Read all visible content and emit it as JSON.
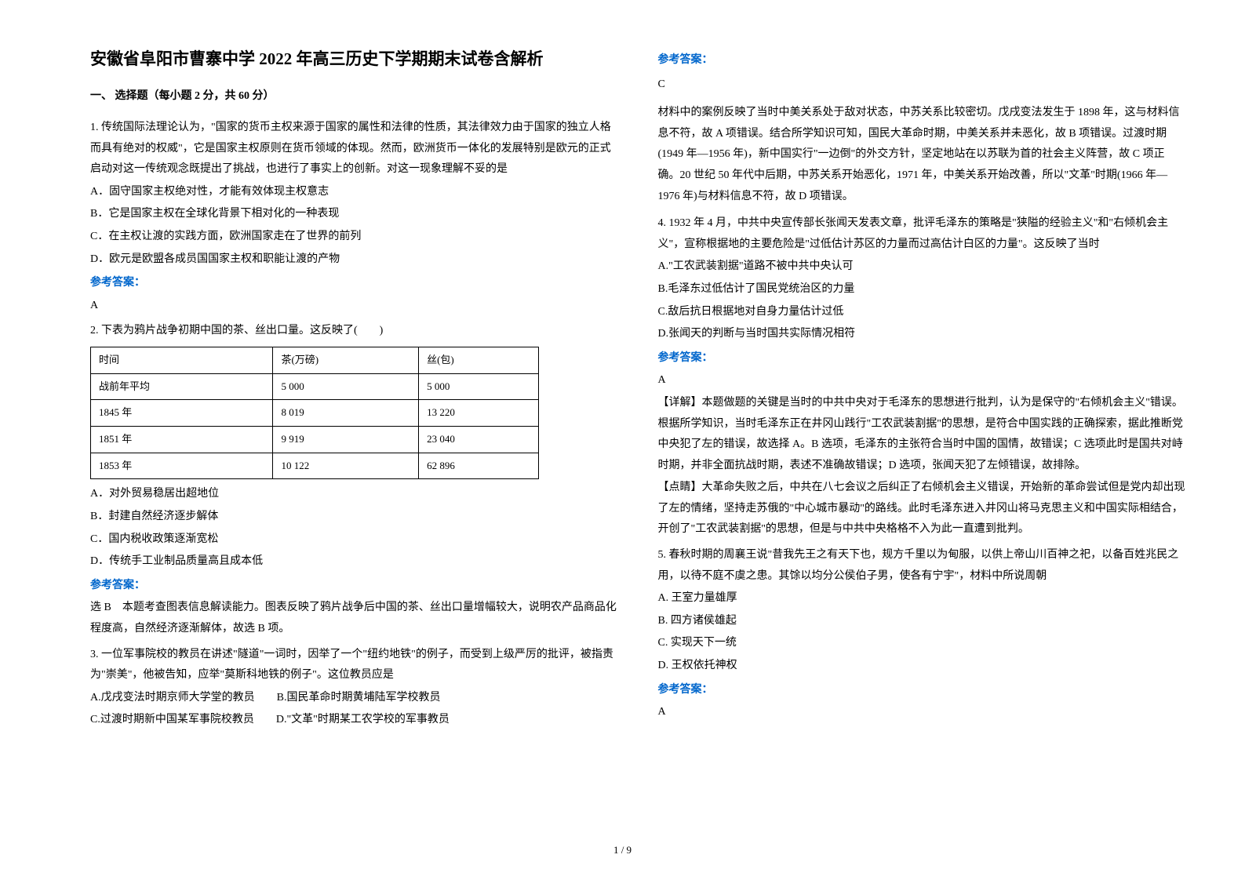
{
  "title": "安徽省阜阳市曹寨中学 2022 年高三历史下学期期末试卷含解析",
  "section_header": "一、 选择题（每小题 2 分，共 60 分）",
  "left": {
    "q1": {
      "stem": "1. 传统国际法理论认为，\"国家的货币主权来源于国家的属性和法律的性质，其法律效力由于国家的独立人格而具有绝对的权威\"，它是国家主权原则在货币领域的体现。然而，欧洲货币一体化的发展特别是欧元的正式启动对这一传统观念既提出了挑战，也进行了事实上的创新。对这一现象理解不妥的是",
      "opts": [
        "A．固守国家主权绝对性，才能有效体现主权意志",
        "B．它是国家主权在全球化背景下相对化的一种表现",
        "C．在主权让渡的实践方面，欧洲国家走在了世界的前列",
        "D．欧元是欧盟各成员国国家主权和职能让渡的产物"
      ],
      "answer": "A"
    },
    "q2": {
      "stem": "2. 下表为鸦片战争初期中国的茶、丝出口量。这反映了(　　)",
      "table": {
        "header": [
          "时间",
          "茶(万磅)",
          "丝(包)"
        ],
        "rows": [
          [
            "战前年平均",
            "5 000",
            "5 000"
          ],
          [
            "1845 年",
            "8 019",
            "13 220"
          ],
          [
            "1851 年",
            "9 919",
            "23 040"
          ],
          [
            "1853 年",
            "10 122",
            "62 896"
          ]
        ]
      },
      "opts": [
        "A．对外贸易稳居出超地位",
        "B．封建自然经济逐步解体",
        "C．国内税收政策逐渐宽松",
        "D．传统手工业制品质量高且成本低"
      ],
      "answer_text": "选 B　本题考查图表信息解读能力。图表反映了鸦片战争后中国的茶、丝出口量增幅较大，说明农产品商品化程度高，自然经济逐渐解体，故选 B 项。"
    },
    "q3": {
      "stem": "3. 一位军事院校的教员在讲述\"隧道\"一词时，因举了一个\"纽约地铁\"的例子，而受到上级严厉的批评，被指责为\"崇美\"，他被告知，应举\"莫斯科地铁的例子\"。这位教员应是",
      "opts": [
        "A.戊戌变法时期京师大学堂的教员　　B.国民革命时期黄埔陆军学校教员",
        "C.过渡时期新中国某军事院校教员　　D.\"文革\"时期某工农学校的军事教员"
      ]
    }
  },
  "right": {
    "q3_answer": "C",
    "q3_explain": "材料中的案例反映了当时中美关系处于敌对状态，中苏关系比较密切。戊戌变法发生于 1898 年，这与材料信息不符，故 A 项错误。结合所学知识可知，国民大革命时期，中美关系并未恶化，故 B 项错误。过渡时期(1949 年—1956 年)，新中国实行\"一边倒\"的外交方针，坚定地站在以苏联为首的社会主义阵营，故 C 项正确。20 世纪 50 年代中后期，中苏关系开始恶化，1971 年，中美关系开始改善，所以\"文革\"时期(1966 年—1976 年)与材料信息不符，故 D 项错误。",
    "q4": {
      "stem": "4. 1932 年 4 月，中共中央宣传部长张闻天发表文章，批评毛泽东的策略是\"狭隘的经验主义\"和\"右倾机会主义\"，宣称根据地的主要危险是\"过低估计苏区的力量而过高估计白区的力量\"。这反映了当时",
      "opts": [
        "A.\"工农武装割据\"道路不被中共中央认可",
        "B.毛泽东过低估计了国民党统治区的力量",
        "C.敌后抗日根据地对自身力量估计过低",
        "D.张闻天的判断与当时国共实际情况相符"
      ],
      "answer": "A",
      "detail": "【详解】本题做题的关键是当时的中共中央对于毛泽东的思想进行批判，认为是保守的\"右倾机会主义\"错误。根据所学知识，当时毛泽东正在井冈山践行\"工农武装割据\"的思想，是符合中国实践的正确探索，据此推断党中央犯了左的错误，故选择 A。B 选项，毛泽东的主张符合当时中国的国情，故错误；C 选项此时是国共对峙时期，并非全面抗战时期，表述不准确故错误；D 选项，张闻天犯了左倾错误，故排除。",
      "dianjing": "【点睛】大革命失败之后，中共在八七会议之后纠正了右倾机会主义错误，开始新的革命尝试但是党内却出现了左的情绪，坚持走苏俄的\"中心城市暴动\"的路线。此时毛泽东进入井冈山将马克思主义和中国实际相结合，开创了\"工农武装割据\"的思想，但是与中共中央格格不入为此一直遭到批判。"
    },
    "q5": {
      "stem": "5. 春秋时期的周襄王说\"昔我先王之有天下也，规方千里以为甸服，以供上帝山川百神之祀，以备百姓兆民之用，以待不庭不虞之患。其馀以均分公侯伯子男，使各有宁宇\"，材料中所说周朝",
      "opts": [
        "A. 王室力量雄厚",
        "B. 四方诸侯雄起",
        "C. 实现天下一统",
        "D. 王权依托神权"
      ],
      "answer": "A"
    }
  },
  "answer_label": "参考答案：",
  "page_num": "1 / 9",
  "colors": {
    "text": "#000000",
    "answer_blue": "#0066cc",
    "background": "#ffffff",
    "border": "#000000"
  }
}
